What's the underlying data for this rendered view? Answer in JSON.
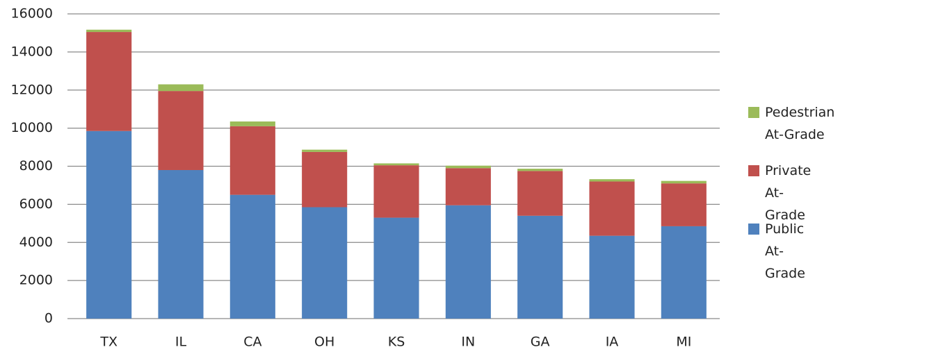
{
  "chart_data": {
    "type": "stacked_bar",
    "categories": [
      "TX",
      "IL",
      "CA",
      "OH",
      "KS",
      "IN",
      "GA",
      "IA",
      "MI"
    ],
    "series": [
      {
        "name": "Public At-Grade",
        "color": "#4f81bd",
        "values": [
          9850,
          7800,
          6500,
          5850,
          5300,
          5950,
          5400,
          4350,
          4850
        ]
      },
      {
        "name": "Private At-Grade",
        "color": "#c0504d",
        "values": [
          5200,
          4150,
          3600,
          2900,
          2750,
          1950,
          2350,
          2850,
          2250
        ]
      },
      {
        "name": "Pedestrian At-Grade",
        "color": "#9bbb59",
        "values": [
          120,
          350,
          250,
          120,
          100,
          130,
          120,
          120,
          130
        ]
      }
    ],
    "ylim": [
      0,
      16000
    ],
    "yticks": [
      0,
      2000,
      4000,
      6000,
      8000,
      10000,
      12000,
      14000,
      16000
    ],
    "grid": true
  }
}
